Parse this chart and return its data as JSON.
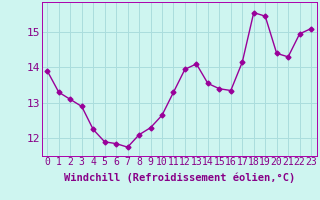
{
  "x": [
    0,
    1,
    2,
    3,
    4,
    5,
    6,
    7,
    8,
    9,
    10,
    11,
    12,
    13,
    14,
    15,
    16,
    17,
    18,
    19,
    20,
    21,
    22,
    23
  ],
  "y": [
    13.9,
    13.3,
    13.1,
    12.9,
    12.25,
    11.9,
    11.85,
    11.75,
    12.1,
    12.3,
    12.65,
    13.3,
    13.95,
    14.1,
    13.55,
    13.4,
    13.35,
    14.15,
    15.55,
    15.45,
    14.4,
    14.3,
    14.95,
    15.1
  ],
  "line_color": "#990099",
  "marker": "D",
  "marker_size": 2.5,
  "background_color": "#cef5f0",
  "grid_color": "#aadddd",
  "xlabel": "Windchill (Refroidissement éolien,°C)",
  "xlabel_fontsize": 7.5,
  "tick_fontsize": 7,
  "ylim": [
    11.5,
    15.85
  ],
  "yticks": [
    12,
    13,
    14,
    15
  ],
  "xticks": [
    0,
    1,
    2,
    3,
    4,
    5,
    6,
    7,
    8,
    9,
    10,
    11,
    12,
    13,
    14,
    15,
    16,
    17,
    18,
    19,
    20,
    21,
    22,
    23
  ],
  "xtick_labels": [
    "0",
    "1",
    "2",
    "3",
    "4",
    "5",
    "6",
    "7",
    "8",
    "9",
    "10",
    "11",
    "12",
    "13",
    "14",
    "15",
    "16",
    "17",
    "18",
    "19",
    "20",
    "21",
    "22",
    "23"
  ],
  "spine_color": "#aa00aa",
  "text_color": "#880088"
}
